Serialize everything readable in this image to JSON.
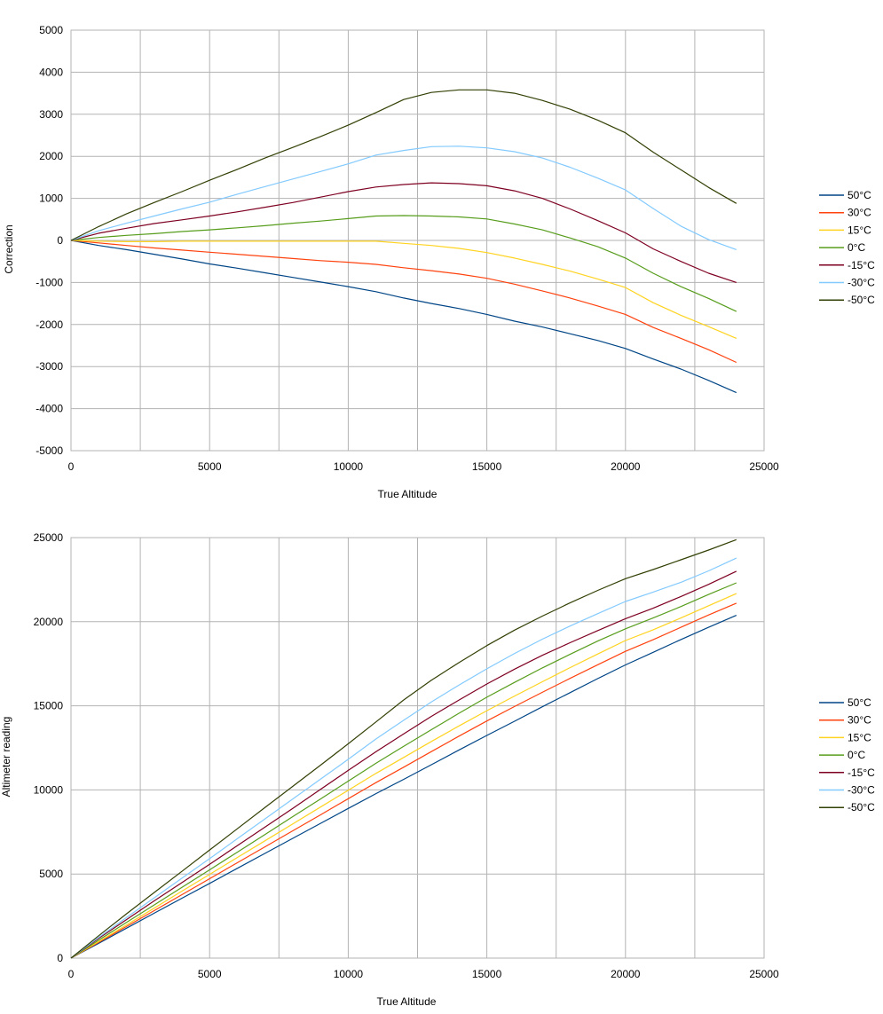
{
  "charts": [
    {
      "type": "line",
      "xlabel": "True Altitude",
      "ylabel": "Correction",
      "xlim": [
        0,
        25000
      ],
      "ylim": [
        -5000,
        5000
      ],
      "x_ticks": [
        0,
        5000,
        10000,
        15000,
        20000,
        25000
      ],
      "y_ticks": [
        -5000,
        -4000,
        -3000,
        -2000,
        -1000,
        0,
        1000,
        2000,
        3000,
        4000,
        5000
      ],
      "x_tick_labels": [
        "0",
        "5000",
        "10000",
        "15000",
        "20000",
        "25000"
      ],
      "y_tick_labels": [
        "-5000",
        "-4000",
        "-3000",
        "-2000",
        "-1000",
        "0",
        "1000",
        "2000",
        "3000",
        "4000",
        "5000"
      ],
      "grid": true,
      "legend": "right",
      "x": [
        0,
        1000,
        2000,
        3000,
        4000,
        5000,
        6000,
        7000,
        8000,
        9000,
        10000,
        11000,
        12000,
        13000,
        14000,
        15000,
        16000,
        17000,
        18000,
        19000,
        20000,
        21000,
        22000,
        23000,
        24000
      ],
      "series": [
        {
          "name": "50°C",
          "color": "#004586",
          "values": [
            0,
            -120,
            -220,
            -330,
            -440,
            -560,
            -660,
            -770,
            -880,
            -990,
            -1100,
            -1220,
            -1370,
            -1500,
            -1620,
            -1760,
            -1920,
            -2060,
            -2220,
            -2380,
            -2570,
            -2820,
            -3060,
            -3330,
            -3620
          ]
        },
        {
          "name": "30°C",
          "color": "#ff420e",
          "values": [
            0,
            -60,
            -120,
            -180,
            -230,
            -280,
            -330,
            -380,
            -430,
            -480,
            -520,
            -570,
            -650,
            -720,
            -800,
            -900,
            -1040,
            -1200,
            -1370,
            -1560,
            -1760,
            -2070,
            -2330,
            -2600,
            -2900
          ]
        },
        {
          "name": "15°C",
          "color": "#ffd320",
          "values": [
            0,
            -20,
            -30,
            -30,
            -20,
            -20,
            -20,
            -20,
            -20,
            -20,
            -20,
            -20,
            -70,
            -120,
            -190,
            -290,
            -420,
            -570,
            -730,
            -920,
            -1120,
            -1480,
            -1780,
            -2050,
            -2330
          ]
        },
        {
          "name": "0°C",
          "color": "#579d1c",
          "values": [
            0,
            70,
            120,
            160,
            210,
            250,
            300,
            350,
            410,
            460,
            520,
            580,
            590,
            580,
            560,
            510,
            390,
            250,
            60,
            -150,
            -420,
            -780,
            -1100,
            -1380,
            -1690
          ]
        },
        {
          "name": "-15°C",
          "color": "#7e0021",
          "values": [
            0,
            170,
            290,
            400,
            490,
            580,
            680,
            790,
            900,
            1030,
            1160,
            1270,
            1330,
            1370,
            1350,
            1300,
            1180,
            1000,
            750,
            470,
            180,
            -200,
            -500,
            -780,
            -1000
          ]
        },
        {
          "name": "-30°C",
          "color": "#83caff",
          "values": [
            0,
            230,
            410,
            580,
            750,
            910,
            1100,
            1280,
            1460,
            1640,
            1820,
            2030,
            2140,
            2230,
            2240,
            2200,
            2110,
            1960,
            1740,
            1480,
            1200,
            760,
            340,
            20,
            -220
          ]
        },
        {
          "name": "-50°C",
          "color": "#314004",
          "values": [
            0,
            330,
            630,
            900,
            1160,
            1430,
            1690,
            1960,
            2210,
            2470,
            2740,
            3040,
            3350,
            3520,
            3580,
            3580,
            3500,
            3330,
            3120,
            2860,
            2560,
            2100,
            1680,
            1260,
            880
          ]
        }
      ]
    },
    {
      "type": "line",
      "xlabel": "True Altitude",
      "ylabel": "Altimeter reading",
      "xlim": [
        0,
        25000
      ],
      "ylim": [
        0,
        25000
      ],
      "x_ticks": [
        0,
        5000,
        10000,
        15000,
        20000,
        25000
      ],
      "y_ticks": [
        0,
        5000,
        10000,
        15000,
        20000,
        25000
      ],
      "x_tick_labels": [
        "0",
        "5000",
        "10000",
        "15000",
        "20000",
        "25000"
      ],
      "y_tick_labels": [
        "0",
        "5000",
        "10000",
        "15000",
        "20000",
        "25000"
      ],
      "grid": true,
      "legend": "right",
      "x": [
        0,
        1000,
        2000,
        3000,
        4000,
        5000,
        6000,
        7000,
        8000,
        9000,
        10000,
        11000,
        12000,
        13000,
        14000,
        15000,
        16000,
        17000,
        18000,
        19000,
        20000,
        21000,
        22000,
        23000,
        24000
      ],
      "series": [
        {
          "name": "50°C",
          "color": "#004586",
          "values": [
            0,
            880,
            1780,
            2670,
            3560,
            4440,
            5340,
            6230,
            7120,
            8010,
            8900,
            9780,
            10630,
            11500,
            12380,
            13240,
            14080,
            14940,
            15780,
            16620,
            17430,
            18180,
            18940,
            19670,
            20380
          ]
        },
        {
          "name": "30°C",
          "color": "#ff420e",
          "values": [
            0,
            940,
            1880,
            2820,
            3770,
            4720,
            5670,
            6620,
            7570,
            8520,
            9480,
            10430,
            11350,
            12280,
            13200,
            14100,
            14960,
            15800,
            16630,
            17440,
            18240,
            18930,
            19670,
            20400,
            21100
          ]
        },
        {
          "name": "15°C",
          "color": "#ffd320",
          "values": [
            0,
            980,
            1970,
            2970,
            3980,
            4980,
            5980,
            6980,
            7980,
            8980,
            9980,
            10980,
            11930,
            12880,
            13810,
            14710,
            15580,
            16430,
            17270,
            18080,
            18880,
            19520,
            20220,
            20950,
            21670
          ]
        },
        {
          "name": "0°C",
          "color": "#579d1c",
          "values": [
            0,
            1070,
            2120,
            3160,
            4210,
            5250,
            6300,
            7350,
            8410,
            9460,
            10520,
            11580,
            12590,
            13580,
            14560,
            15510,
            16390,
            17250,
            18060,
            18850,
            19580,
            20220,
            20900,
            21620,
            22310
          ]
        },
        {
          "name": "-15°C",
          "color": "#7e0021",
          "values": [
            0,
            1170,
            2290,
            3400,
            4490,
            5580,
            6680,
            7790,
            8900,
            10030,
            11160,
            12270,
            13330,
            14370,
            15350,
            16300,
            17180,
            18000,
            18750,
            19470,
            20180,
            20800,
            21500,
            22220,
            23000
          ]
        },
        {
          "name": "-30°C",
          "color": "#83caff",
          "values": [
            0,
            1230,
            2410,
            3580,
            4750,
            5910,
            7100,
            8280,
            9460,
            10640,
            11820,
            13030,
            14140,
            15230,
            16240,
            17200,
            18110,
            18960,
            19740,
            20480,
            21200,
            21760,
            22340,
            23020,
            23780
          ]
        },
        {
          "name": "-50°C",
          "color": "#314004",
          "values": [
            0,
            1330,
            2630,
            3900,
            5160,
            6430,
            7690,
            8960,
            10210,
            11470,
            12740,
            14040,
            15350,
            16520,
            17580,
            18580,
            19500,
            20330,
            21120,
            21860,
            22560,
            23100,
            23680,
            24260,
            24880
          ]
        }
      ]
    }
  ]
}
